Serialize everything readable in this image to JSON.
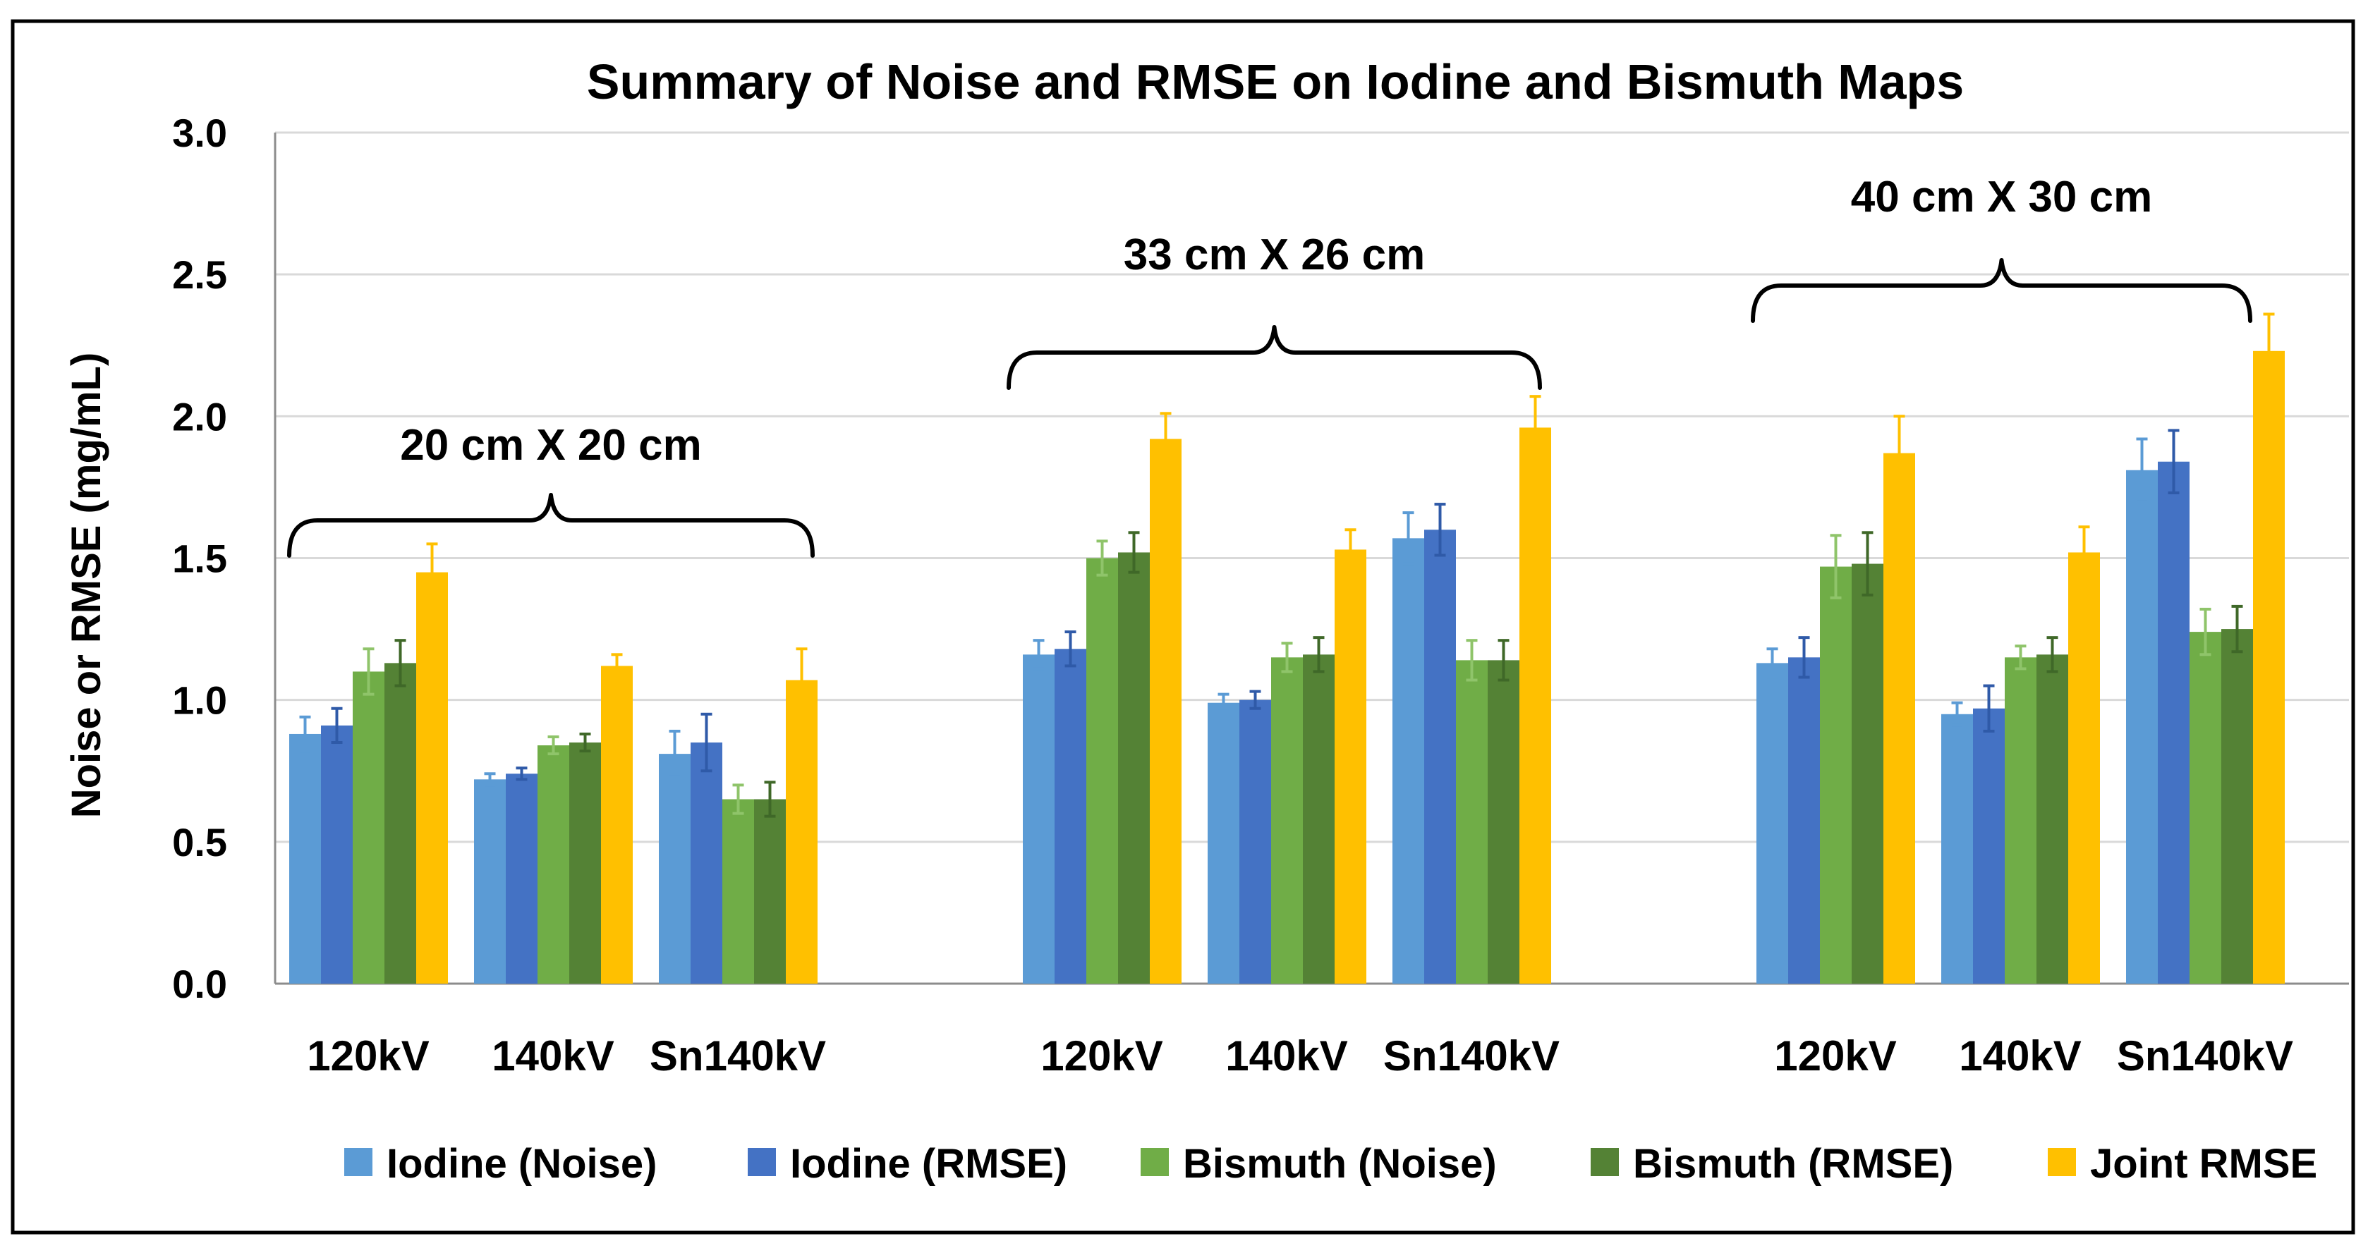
{
  "chart_data": {
    "type": "bar",
    "title": "Summary of Noise and RMSE on Iodine and Bismuth Maps",
    "xlabel": "",
    "ylabel": "Noise or RMSE (mg/mL)",
    "ylim": [
      0,
      3.0
    ],
    "yticks": [
      "0.0",
      "0.5",
      "1.0",
      "1.5",
      "2.0",
      "2.5",
      "3.0"
    ],
    "grid": true,
    "legend_position": "bottom",
    "groups": [
      {
        "label": "20 cm X 20 cm",
        "categories": [
          "120kV",
          "140kV",
          "Sn140kV"
        ],
        "series": [
          {
            "name": "Iodine (Noise)",
            "values": [
              0.88,
              0.72,
              0.81
            ],
            "errors": [
              0.06,
              0.02,
              0.08
            ]
          },
          {
            "name": "Iodine (RMSE)",
            "values": [
              0.91,
              0.74,
              0.85
            ],
            "errors": [
              0.06,
              0.02,
              0.1
            ]
          },
          {
            "name": "Bismuth (Noise)",
            "values": [
              1.1,
              0.84,
              0.65
            ],
            "errors": [
              0.08,
              0.03,
              0.05
            ]
          },
          {
            "name": "Bismuth (RMSE)",
            "values": [
              1.13,
              0.85,
              0.65
            ],
            "errors": [
              0.08,
              0.03,
              0.06
            ]
          },
          {
            "name": "Joint RMSE",
            "values": [
              1.45,
              1.12,
              1.07
            ],
            "errors": [
              0.1,
              0.04,
              0.11
            ]
          }
        ]
      },
      {
        "label": "33 cm X 26 cm",
        "categories": [
          "120kV",
          "140kV",
          "Sn140kV"
        ],
        "series": [
          {
            "name": "Iodine (Noise)",
            "values": [
              1.16,
              0.99,
              1.57
            ],
            "errors": [
              0.05,
              0.03,
              0.09
            ]
          },
          {
            "name": "Iodine (RMSE)",
            "values": [
              1.18,
              1.0,
              1.6
            ],
            "errors": [
              0.06,
              0.03,
              0.09
            ]
          },
          {
            "name": "Bismuth (Noise)",
            "values": [
              1.5,
              1.15,
              1.14
            ],
            "errors": [
              0.06,
              0.05,
              0.07
            ]
          },
          {
            "name": "Bismuth (RMSE)",
            "values": [
              1.52,
              1.16,
              1.14
            ],
            "errors": [
              0.07,
              0.06,
              0.07
            ]
          },
          {
            "name": "Joint RMSE",
            "values": [
              1.92,
              1.53,
              1.96
            ],
            "errors": [
              0.09,
              0.07,
              0.11
            ]
          }
        ]
      },
      {
        "label": "40 cm X 30 cm",
        "categories": [
          "120kV",
          "140kV",
          "Sn140kV"
        ],
        "series": [
          {
            "name": "Iodine (Noise)",
            "values": [
              1.13,
              0.95,
              1.81
            ],
            "errors": [
              0.05,
              0.04,
              0.11
            ]
          },
          {
            "name": "Iodine (RMSE)",
            "values": [
              1.15,
              0.97,
              1.84
            ],
            "errors": [
              0.07,
              0.08,
              0.11
            ]
          },
          {
            "name": "Bismuth (Noise)",
            "values": [
              1.47,
              1.15,
              1.24
            ],
            "errors": [
              0.11,
              0.04,
              0.08
            ]
          },
          {
            "name": "Bismuth (RMSE)",
            "values": [
              1.48,
              1.16,
              1.25
            ],
            "errors": [
              0.11,
              0.06,
              0.08
            ]
          },
          {
            "name": "Joint RMSE",
            "values": [
              1.87,
              1.52,
              2.23
            ],
            "errors": [
              0.13,
              0.09,
              0.13
            ]
          }
        ]
      }
    ],
    "legend": [
      {
        "name": "Iodine (Noise)",
        "color": "#5b9bd5"
      },
      {
        "name": "Iodine (RMSE)",
        "color": "#4472c4"
      },
      {
        "name": "Bismuth (Noise)",
        "color": "#70ad47"
      },
      {
        "name": "Bismuth (RMSE)",
        "color": "#548235"
      },
      {
        "name": "Joint RMSE",
        "color": "#ffc000"
      }
    ]
  }
}
